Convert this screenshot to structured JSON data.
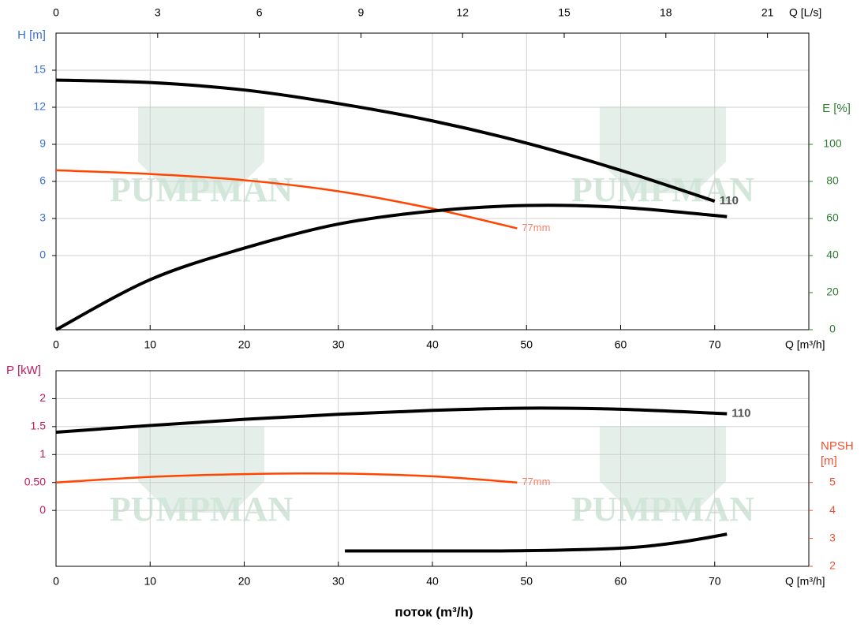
{
  "watermark": "PUMPMAN",
  "title": "поток (m³/h)",
  "chart_data": [
    {
      "type": "line",
      "x_label": "Q [m³/h]",
      "x2_label": "Q [L/s]",
      "y_label": "H [m]",
      "y2_label": "E [%]",
      "xlim": [
        0,
        80
      ],
      "xticks": [
        0,
        10,
        20,
        30,
        40,
        50,
        60,
        70
      ],
      "x2lim": [
        0,
        22.22
      ],
      "x2ticks": [
        0,
        3,
        6,
        9,
        12,
        15,
        18,
        21
      ],
      "ylim": [
        -6,
        18
      ],
      "yticks": [
        0,
        3,
        6,
        9,
        12,
        15
      ],
      "y2lim": [
        0,
        160
      ],
      "y2ticks": [
        0,
        20,
        40,
        60,
        80,
        100
      ],
      "grid": true,
      "series": [
        {
          "name": "110",
          "color": "#000000",
          "x": [
            0,
            10,
            20,
            30,
            40,
            50,
            60,
            70
          ],
          "values": [
            14.2,
            14.0,
            13.4,
            12.3,
            10.9,
            9.1,
            6.9,
            4.4
          ]
        },
        {
          "name": "77mm",
          "color": "#ff4500",
          "x": [
            0,
            10,
            20,
            30,
            40,
            49
          ],
          "values": [
            6.9,
            6.6,
            6.1,
            5.2,
            3.8,
            2.2
          ]
        },
        {
          "color": "#000000",
          "axis": "y2",
          "x": [
            0,
            10,
            20,
            30,
            40,
            50,
            60,
            71.3
          ],
          "values": [
            0,
            27,
            44,
            57,
            64,
            67,
            66,
            61
          ]
        }
      ]
    },
    {
      "type": "line",
      "x_label": "Q [m³/h]",
      "y_label": "P [kW]",
      "y2_label": "NPSH [m]",
      "xlim": [
        0,
        80
      ],
      "xticks": [
        0,
        10,
        20,
        30,
        40,
        50,
        60,
        70
      ],
      "ylim": [
        -1,
        2.5
      ],
      "yticks": [
        0,
        {
          "value": 0.5,
          "label": "0.50"
        },
        1,
        1.5,
        2
      ],
      "y2lim": [
        2,
        9
      ],
      "y2ticks": [
        2,
        3,
        4,
        5
      ],
      "grid": true,
      "series": [
        {
          "name": "110",
          "color": "#000000",
          "x": [
            0,
            10,
            20,
            30,
            40,
            50,
            60,
            71.3
          ],
          "values": [
            1.4,
            1.52,
            1.63,
            1.72,
            1.79,
            1.83,
            1.81,
            1.73
          ]
        },
        {
          "name": "77mm",
          "color": "#ff4500",
          "x": [
            0,
            10,
            20,
            30,
            40,
            49
          ],
          "values": [
            0.5,
            0.6,
            0.65,
            0.66,
            0.61,
            0.5
          ]
        },
        {
          "color": "#000000",
          "axis": "y2",
          "x": [
            30.7,
            40,
            50,
            60,
            66,
            71.3
          ],
          "values": [
            2.55,
            2.55,
            2.56,
            2.65,
            2.85,
            3.15
          ]
        }
      ]
    }
  ]
}
